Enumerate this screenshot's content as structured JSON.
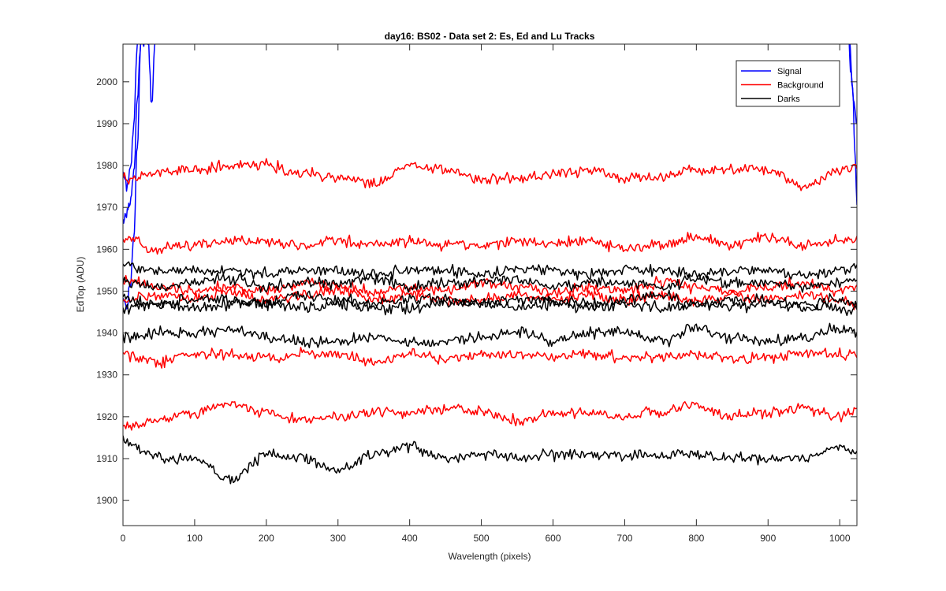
{
  "chart_data": {
    "type": "line",
    "title": "day16: BS02 - Data set 2: Es, Ed and Lu Tracks",
    "xlabel": "Wavelength (pixels)",
    "ylabel": "EdTop (ADU)",
    "xlim": [
      0,
      1024
    ],
    "ylim": [
      1894,
      2009
    ],
    "xticks": [
      0,
      100,
      200,
      300,
      400,
      500,
      600,
      700,
      800,
      900,
      1000
    ],
    "yticks": [
      1900,
      1910,
      1920,
      1930,
      1940,
      1950,
      1960,
      1970,
      1980,
      1990,
      2000
    ],
    "grid": false,
    "legend_position": "top-right",
    "colors": {
      "Signal": "#0000ff",
      "Background": "#ff0000",
      "Darks": "#000000"
    },
    "legend": [
      "Signal",
      "Background",
      "Darks"
    ],
    "series": [
      {
        "group": "Signal",
        "x": [
          0,
          5,
          10,
          15,
          20,
          25,
          30,
          35,
          40,
          45
        ],
        "y": [
          1948,
          1946,
          1951,
          1962,
          1985,
          2010,
          2010,
          2010,
          1995,
          2010
        ]
      },
      {
        "group": "Signal",
        "x": [
          0,
          5,
          10,
          15,
          20,
          25,
          30
        ],
        "y": [
          1966,
          1969,
          1971,
          1978,
          1996,
          2010,
          2010
        ]
      },
      {
        "group": "Signal",
        "x": [
          0,
          5,
          10,
          15,
          20,
          25
        ],
        "y": [
          1978,
          1975,
          1978,
          1990,
          2010,
          2010
        ]
      },
      {
        "group": "Signal",
        "x": [
          1010,
          1014,
          1018,
          1022,
          1024
        ],
        "y": [
          2010,
          2010,
          1998,
          1980,
          1970
        ]
      },
      {
        "group": "Signal",
        "x": [
          1012,
          1016,
          1020,
          1024
        ],
        "y": [
          2010,
          2002,
          1994,
          1990
        ]
      },
      {
        "group": "Background",
        "x": [
          0,
          50,
          100,
          150,
          200,
          250,
          300,
          350,
          400,
          450,
          500,
          550,
          600,
          650,
          700,
          750,
          800,
          850,
          900,
          950,
          1000,
          1024
        ],
        "y": [
          1977,
          1978,
          1979,
          1980,
          1980,
          1978,
          1977,
          1976,
          1980,
          1979,
          1977,
          1977,
          1978,
          1979,
          1977,
          1977,
          1979,
          1979,
          1979,
          1975,
          1979,
          1980
        ]
      },
      {
        "group": "Background",
        "x": [
          0,
          50,
          100,
          150,
          200,
          250,
          300,
          350,
          400,
          450,
          500,
          550,
          600,
          650,
          700,
          750,
          800,
          850,
          900,
          950,
          1000,
          1024
        ],
        "y": [
          1963,
          1960,
          1961,
          1962,
          1962,
          1961,
          1962,
          1961,
          1962,
          1961,
          1961,
          1962,
          1961,
          1962,
          1960,
          1961,
          1963,
          1961,
          1963,
          1961,
          1962,
          1962
        ]
      },
      {
        "group": "Background",
        "x": [
          0,
          50,
          100,
          150,
          200,
          250,
          300,
          350,
          400,
          450,
          500,
          550,
          600,
          650,
          700,
          750,
          800,
          850,
          900,
          950,
          1000,
          1024
        ],
        "y": [
          1953,
          1951,
          1950,
          1951,
          1950,
          1952,
          1951,
          1950,
          1951,
          1950,
          1952,
          1951,
          1950,
          1951,
          1950,
          1952,
          1951,
          1950,
          1951,
          1952,
          1950,
          1951
        ]
      },
      {
        "group": "Background",
        "x": [
          0,
          50,
          100,
          150,
          200,
          250,
          300,
          350,
          400,
          450,
          500,
          550,
          600,
          650,
          700,
          750,
          800,
          850,
          900,
          950,
          1000,
          1024
        ],
        "y": [
          1948,
          1949,
          1948,
          1950,
          1948,
          1949,
          1950,
          1948,
          1949,
          1948,
          1948,
          1949,
          1948,
          1949,
          1948,
          1949,
          1948,
          1949,
          1948,
          1949,
          1948,
          1947
        ]
      },
      {
        "group": "Background",
        "x": [
          0,
          50,
          100,
          150,
          200,
          250,
          300,
          350,
          400,
          450,
          500,
          550,
          600,
          650,
          700,
          750,
          800,
          850,
          900,
          950,
          1000,
          1024
        ],
        "y": [
          1935,
          1933,
          1935,
          1935,
          1934,
          1935,
          1935,
          1933,
          1935,
          1934,
          1935,
          1935,
          1934,
          1935,
          1934,
          1934,
          1935,
          1934,
          1934,
          1935,
          1935,
          1935
        ]
      },
      {
        "group": "Background",
        "x": [
          0,
          50,
          100,
          150,
          200,
          250,
          300,
          350,
          400,
          450,
          500,
          550,
          600,
          650,
          700,
          750,
          800,
          850,
          900,
          950,
          1000,
          1024
        ],
        "y": [
          1918,
          1919,
          1921,
          1923,
          1921,
          1919,
          1920,
          1921,
          1921,
          1922,
          1921,
          1919,
          1921,
          1921,
          1920,
          1921,
          1923,
          1920,
          1921,
          1922,
          1920,
          1921
        ]
      },
      {
        "group": "Darks",
        "x": [
          0,
          50,
          100,
          150,
          200,
          250,
          300,
          350,
          400,
          450,
          500,
          550,
          600,
          650,
          700,
          750,
          800,
          850,
          900,
          950,
          1000,
          1024
        ],
        "y": [
          1956,
          1955,
          1955,
          1955,
          1954,
          1955,
          1955,
          1954,
          1955,
          1955,
          1954,
          1955,
          1955,
          1954,
          1955,
          1955,
          1954,
          1955,
          1955,
          1954,
          1955,
          1956
        ]
      },
      {
        "group": "Darks",
        "x": [
          0,
          50,
          100,
          150,
          200,
          250,
          300,
          350,
          400,
          450,
          500,
          550,
          600,
          650,
          700,
          750,
          800,
          850,
          900,
          950,
          1000,
          1024
        ],
        "y": [
          1952,
          1951,
          1952,
          1953,
          1951,
          1952,
          1952,
          1953,
          1951,
          1952,
          1952,
          1953,
          1951,
          1952,
          1952,
          1951,
          1953,
          1952,
          1952,
          1951,
          1952,
          1953
        ]
      },
      {
        "group": "Darks",
        "x": [
          0,
          50,
          100,
          150,
          200,
          250,
          300,
          350,
          400,
          450,
          500,
          550,
          600,
          650,
          700,
          750,
          800,
          850,
          900,
          950,
          1000,
          1024
        ],
        "y": [
          1948,
          1947,
          1948,
          1948,
          1947,
          1949,
          1948,
          1947,
          1948,
          1948,
          1947,
          1948,
          1948,
          1947,
          1948,
          1949,
          1947,
          1948,
          1948,
          1947,
          1948,
          1947
        ]
      },
      {
        "group": "Darks",
        "x": [
          0,
          50,
          100,
          150,
          200,
          250,
          300,
          350,
          400,
          450,
          500,
          550,
          600,
          650,
          700,
          750,
          800,
          850,
          900,
          950,
          1000,
          1024
        ],
        "y": [
          1946,
          1947,
          1946,
          1947,
          1947,
          1946,
          1947,
          1946,
          1946,
          1947,
          1947,
          1946,
          1947,
          1946,
          1947,
          1946,
          1947,
          1946,
          1947,
          1946,
          1946,
          1946
        ]
      },
      {
        "group": "Darks",
        "x": [
          0,
          50,
          100,
          150,
          200,
          250,
          300,
          350,
          400,
          450,
          500,
          550,
          600,
          650,
          700,
          750,
          800,
          850,
          900,
          950,
          1000,
          1024
        ],
        "y": [
          1939,
          1940,
          1940,
          1941,
          1939,
          1938,
          1938,
          1939,
          1938,
          1938,
          1939,
          1940,
          1938,
          1940,
          1940,
          1938,
          1941,
          1939,
          1938,
          1939,
          1941,
          1940
        ]
      },
      {
        "group": "Darks",
        "x": [
          0,
          50,
          100,
          150,
          200,
          250,
          300,
          350,
          400,
          450,
          500,
          550,
          600,
          650,
          700,
          750,
          800,
          850,
          900,
          950,
          1000,
          1024
        ],
        "y": [
          1914,
          1910,
          1910,
          1905,
          1911,
          1910,
          1907,
          1911,
          1913,
          1910,
          1911,
          1910,
          1911,
          1911,
          1911,
          1911,
          1911,
          1910,
          1910,
          1910,
          1913,
          1911
        ]
      }
    ]
  }
}
